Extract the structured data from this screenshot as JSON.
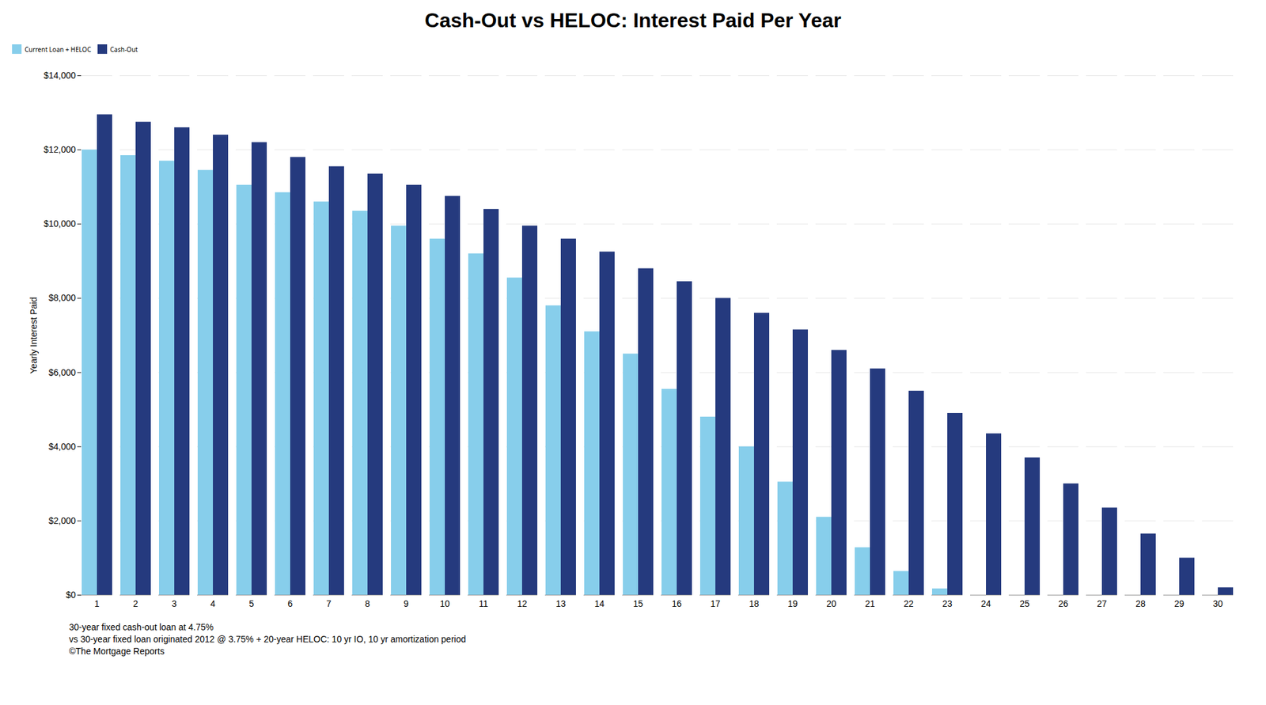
{
  "chart_data": {
    "type": "bar",
    "title": "Cash-Out vs HELOC: Interest Paid Per Year",
    "ylabel": "Yearly Interest Paid",
    "annotations": [
      "30-year fixed cash-out loan at 4.75%",
      "vs 30-year fixed loan originated 2012 @ 3.75% + 20-year HELOC: 10 yr IO, 10 yr amortization period",
      "©The Mortgage Reports"
    ],
    "categories": [
      1,
      2,
      3,
      4,
      5,
      6,
      7,
      8,
      9,
      10,
      11,
      12,
      13,
      14,
      15,
      16,
      17,
      18,
      19,
      20,
      21,
      22,
      23,
      24,
      25,
      26,
      27,
      28,
      29,
      30
    ],
    "series": [
      {
        "name": "Current Loan + HELOC",
        "color": "#87CEEB",
        "values": [
          12000,
          11850,
          11700,
          11450,
          11050,
          10850,
          10600,
          10350,
          9950,
          9600,
          9200,
          8550,
          7800,
          7100,
          6500,
          5550,
          4800,
          4000,
          3050,
          2100,
          1280,
          640,
          170,
          0,
          0,
          0,
          0,
          0,
          0,
          0
        ]
      },
      {
        "name": "Cash-Out",
        "color": "#253A7E",
        "values": [
          12950,
          12750,
          12600,
          12400,
          12200,
          11800,
          11550,
          11350,
          11050,
          10750,
          10400,
          9950,
          9600,
          9250,
          8800,
          8450,
          8000,
          7600,
          7150,
          6600,
          6100,
          5500,
          4900,
          4350,
          3700,
          3000,
          2350,
          1650,
          1000,
          200
        ]
      }
    ],
    "ylim": [
      0,
      14000
    ],
    "yticks": [
      {
        "value": 0,
        "label": "$0"
      },
      {
        "value": 2000,
        "label": "$2,000"
      },
      {
        "value": 4000,
        "label": "$4,000"
      },
      {
        "value": 6000,
        "label": "$6,000"
      },
      {
        "value": 8000,
        "label": "$8,000"
      },
      {
        "value": 10000,
        "label": "$10,000"
      },
      {
        "value": 12000,
        "label": "$12,000"
      },
      {
        "value": 14000,
        "label": "$14,000"
      }
    ],
    "grid": true,
    "legend": "upper left"
  }
}
